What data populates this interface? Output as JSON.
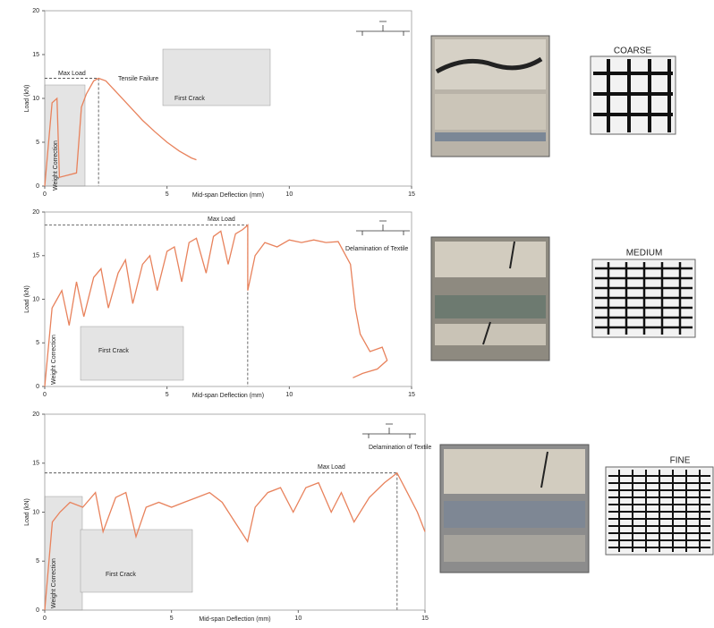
{
  "chart_data": [
    {
      "type": "line",
      "x_label": "Mid-span Deflection (mm)",
      "y_label": "Load (kN)",
      "xlim": [
        0,
        15
      ],
      "ylim": [
        0,
        20
      ],
      "xticks": [
        0,
        5,
        10,
        15
      ],
      "yticks": [
        0,
        5,
        10,
        15,
        20
      ],
      "x": [
        0,
        0.3,
        0.5,
        0.6,
        1.3,
        1.5,
        1.7,
        2.0,
        2.2,
        2.5,
        3.0,
        3.5,
        4.0,
        4.5,
        5.0,
        5.5,
        6.0,
        6.2
      ],
      "values": [
        0,
        9.5,
        10,
        1,
        1.5,
        9,
        10.5,
        12,
        12.3,
        12,
        10.5,
        9,
        7.5,
        6.2,
        5,
        4,
        3.2,
        3
      ],
      "color": "#e8825c",
      "max_load": [
        2.2,
        12.3
      ],
      "annotations": [
        "Max Load",
        "Tensile Failure",
        "First Crack",
        "Weight Correction"
      ],
      "textile": "COARSE"
    },
    {
      "type": "line",
      "x_label": "Mid-span Deflection (mm)",
      "y_label": "Load (kN)",
      "xlim": [
        0,
        15
      ],
      "ylim": [
        0,
        20
      ],
      "xticks": [
        0,
        5,
        10,
        15
      ],
      "yticks": [
        0,
        5,
        10,
        15,
        20
      ],
      "x": [
        0,
        0.3,
        0.5,
        0.7,
        1.0,
        1.3,
        1.6,
        2.0,
        2.3,
        2.6,
        3.0,
        3.3,
        3.6,
        4.0,
        4.3,
        4.6,
        5.0,
        5.3,
        5.6,
        5.9,
        6.2,
        6.6,
        6.9,
        7.2,
        7.5,
        7.8,
        8.1,
        8.3,
        8.3,
        8.6,
        9.0,
        9.5,
        10.0,
        10.5,
        11.0,
        11.5,
        12.0,
        12.5,
        12.7,
        12.9,
        13.3,
        13.8,
        14.0,
        13.6,
        13.0,
        12.6
      ],
      "values": [
        0,
        9,
        10,
        11,
        7,
        12,
        8,
        12.5,
        13.5,
        9,
        13,
        14.5,
        9.5,
        14,
        15,
        11,
        15.5,
        16,
        12,
        16.5,
        17,
        13,
        17.2,
        17.8,
        14,
        17.5,
        18,
        18.5,
        11,
        15,
        16.5,
        16,
        16.8,
        16.5,
        16.8,
        16.5,
        16.6,
        14,
        9,
        6,
        4,
        4.5,
        3,
        2,
        1.5,
        1
      ],
      "color": "#e8825c",
      "max_load": [
        8.3,
        18.5
      ],
      "annotations": [
        "Max Load",
        "Delamination of Textile",
        "First Crack",
        "Weight Correction"
      ],
      "textile": "MEDIUM"
    },
    {
      "type": "line",
      "x_label": "Mid-span Deflection (mm)",
      "y_label": "Load (kN)",
      "xlim": [
        0,
        15
      ],
      "ylim": [
        0,
        20
      ],
      "xticks": [
        0,
        5,
        10,
        15
      ],
      "yticks": [
        0,
        5,
        10,
        15,
        20
      ],
      "x": [
        0,
        0.3,
        0.6,
        1.0,
        1.5,
        2.0,
        2.3,
        2.8,
        3.2,
        3.6,
        4.0,
        4.5,
        5.0,
        5.5,
        6.0,
        6.5,
        7.0,
        7.5,
        8.0,
        8.3,
        8.8,
        9.3,
        9.8,
        10.3,
        10.8,
        11.3,
        11.7,
        12.2,
        12.8,
        13.4,
        13.9,
        14.3,
        14.7,
        15.0
      ],
      "values": [
        0,
        9,
        10,
        11,
        10.5,
        12,
        8,
        11.5,
        12,
        7.5,
        10.5,
        11,
        10.5,
        11,
        11.5,
        12,
        11,
        9,
        7,
        10.5,
        12,
        12.5,
        10,
        12.5,
        13,
        10,
        12,
        9,
        11.5,
        13,
        14,
        12,
        10,
        8
      ],
      "color": "#e8825c",
      "max_load": [
        13.9,
        14
      ],
      "annotations": [
        "Max Load",
        "Delamination of Textile",
        "First Crack",
        "Weight Correction"
      ],
      "textile": "FINE"
    }
  ]
}
